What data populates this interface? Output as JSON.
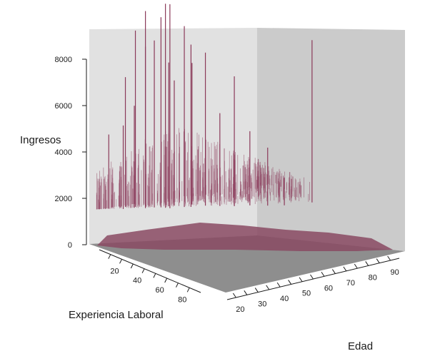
{
  "chart_data": {
    "type": "3d-bar",
    "title": "",
    "xlabel": "Edad",
    "ylabel": "Experiencia Laboral",
    "zlabel": "Ingresos",
    "x_ticks": [
      20,
      30,
      40,
      50,
      60,
      70,
      80,
      90
    ],
    "y_ticks": [
      20,
      40,
      60,
      80
    ],
    "z_ticks": [
      0,
      2000,
      4000,
      6000,
      8000
    ],
    "xlim": [
      16,
      94
    ],
    "ylim": [
      0,
      90
    ],
    "zlim": [
      0,
      8800
    ],
    "grid": false,
    "legend": "none",
    "colors": {
      "bars": "#8b3a5a",
      "bar_mass": "#8a4a63",
      "back_wall_left": "#e1e1e1",
      "back_wall_right": "#cbcbcb",
      "floor": "#8e8e8e",
      "axis": "#1a1a1a"
    },
    "spikes": [
      {
        "edad": 22,
        "exp": 3,
        "ingresos": 3200
      },
      {
        "edad": 26,
        "exp": 8,
        "ingresos": 3600
      },
      {
        "edad": 28,
        "exp": 6,
        "ingresos": 5600
      },
      {
        "edad": 30,
        "exp": 10,
        "ingresos": 4400
      },
      {
        "edad": 31,
        "exp": 9,
        "ingresos": 7600
      },
      {
        "edad": 33,
        "exp": 14,
        "ingresos": 8500
      },
      {
        "edad": 34,
        "exp": 12,
        "ingresos": 6900
      },
      {
        "edad": 36,
        "exp": 16,
        "ingresos": 7200
      },
      {
        "edad": 38,
        "exp": 18,
        "ingresos": 8200
      },
      {
        "edad": 39,
        "exp": 20,
        "ingresos": 8800
      },
      {
        "edad": 40,
        "exp": 22,
        "ingresos": 8800
      },
      {
        "edad": 41,
        "exp": 19,
        "ingresos": 6200
      },
      {
        "edad": 43,
        "exp": 20,
        "ingresos": 5400
      },
      {
        "edad": 45,
        "exp": 25,
        "ingresos": 7800
      },
      {
        "edad": 47,
        "exp": 27,
        "ingresos": 7000
      },
      {
        "edad": 49,
        "exp": 24,
        "ingresos": 6100
      },
      {
        "edad": 52,
        "exp": 30,
        "ingresos": 6600
      },
      {
        "edad": 56,
        "exp": 35,
        "ingresos": 4000
      },
      {
        "edad": 60,
        "exp": 40,
        "ingresos": 5600
      },
      {
        "edad": 65,
        "exp": 44,
        "ingresos": 3200
      },
      {
        "edad": 70,
        "exp": 50,
        "ingresos": 2500
      },
      {
        "edad": 75,
        "exp": 55,
        "ingresos": 1200
      },
      {
        "edad": 85,
        "exp": 60,
        "ingresos": 7000
      }
    ]
  }
}
